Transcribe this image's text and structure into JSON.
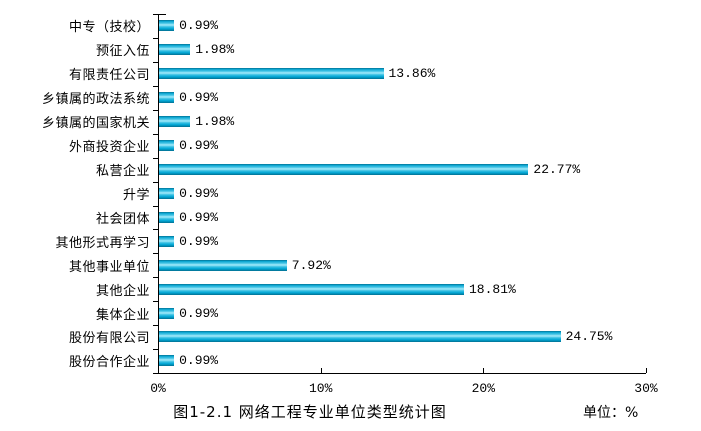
{
  "chart_data": {
    "type": "bar",
    "orientation": "horizontal",
    "title": "图1-2.1 网络工程专业单位类型统计图",
    "unit_label": "单位：%",
    "categories": [
      "中专（技校）",
      "预征入伍",
      "有限责任公司",
      "乡镇属的政法系统",
      "乡镇属的国家机关",
      "外商投资企业",
      "私营企业",
      "升学",
      "社会团体",
      "其他形式再学习",
      "其他事业单位",
      "其他企业",
      "集体企业",
      "股份有限公司",
      "股份合作企业"
    ],
    "values": [
      0.99,
      1.98,
      13.86,
      0.99,
      1.98,
      0.99,
      22.77,
      0.99,
      0.99,
      0.99,
      7.92,
      18.81,
      0.99,
      24.75,
      0.99
    ],
    "value_labels": [
      "0.99%",
      "1.98%",
      "13.86%",
      "0.99%",
      "1.98%",
      "0.99%",
      "22.77%",
      "0.99%",
      "0.99%",
      "0.99%",
      "7.92%",
      "18.81%",
      "0.99%",
      "24.75%",
      "0.99%"
    ],
    "x_ticks": [
      "0%",
      "10%",
      "20%",
      "30%"
    ],
    "x_tick_values": [
      0,
      10,
      20,
      30
    ],
    "xlim": [
      0,
      30
    ],
    "grid": false,
    "legend": false,
    "bar_color": "#00A5D3",
    "bar_color_light": "#A6EBFB",
    "bar_color_dark": "#026F90",
    "axis_color": "#000000",
    "background_color": "#FFFFFF"
  }
}
